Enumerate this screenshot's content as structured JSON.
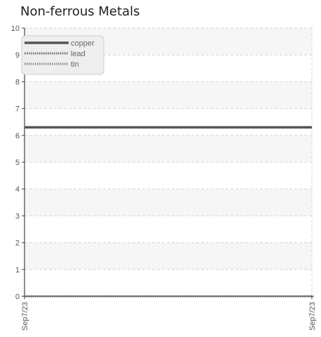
{
  "chart_data": {
    "type": "line",
    "title": "Non-ferrous Metals",
    "x": [
      "Sep7/23",
      "Sep7/23"
    ],
    "xlabel": "",
    "ylabel": "",
    "ylim": [
      0,
      10
    ],
    "yticks": [
      0,
      1,
      2,
      3,
      4,
      5,
      6,
      7,
      8,
      9,
      10
    ],
    "grid": true,
    "legend_position": "top-left",
    "series": [
      {
        "name": "copper",
        "values": [
          6.3,
          6.3
        ],
        "color": "#555555",
        "style": "solid"
      },
      {
        "name": "lead",
        "values": [
          0,
          0
        ],
        "color": "#666666",
        "style": "dotted"
      },
      {
        "name": "tin",
        "values": [
          0,
          0
        ],
        "color": "#888888",
        "style": "dotted"
      }
    ]
  }
}
